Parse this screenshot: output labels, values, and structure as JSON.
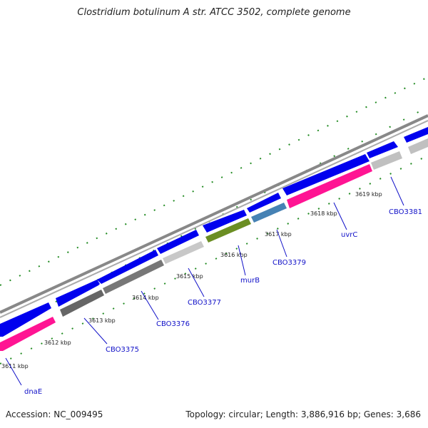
{
  "title": "Clostridium botulinum A str. ATCC 3502, complete genome",
  "footer": {
    "accession": "Accession: NC_009495",
    "summary": "Topology: circular; Length: 3,886,916 bp; Genes: 3,686"
  },
  "colors": {
    "forward_cds": "#0000ee",
    "reverse_hypothetical": "#ff1493",
    "gray_dark": "#666666",
    "gray_light": "#c8c8c8",
    "green": "#6b8e23",
    "steelblue": "#4682b4",
    "backbone": "#888888",
    "tick_green": "#228b22",
    "label": "#1010c8"
  },
  "axis_ticks": [
    {
      "label": "3611 kbp"
    },
    {
      "label": "3612 kbp"
    },
    {
      "label": "3613 kbp"
    },
    {
      "label": "3614 kbp"
    },
    {
      "label": "3615 kbp"
    },
    {
      "label": "3616 kbp"
    },
    {
      "label": "3617 kbp"
    },
    {
      "label": "3618 kbp"
    },
    {
      "label": "3619 kbp"
    }
  ],
  "gene_labels": [
    {
      "label": "dnaE"
    },
    {
      "label": "CBO3375"
    },
    {
      "label": "CBO3376"
    },
    {
      "label": "CBO3377"
    },
    {
      "label": "murB"
    },
    {
      "label": "CBO3379"
    },
    {
      "label": "uvrC"
    },
    {
      "label": "CBO3381"
    }
  ]
}
